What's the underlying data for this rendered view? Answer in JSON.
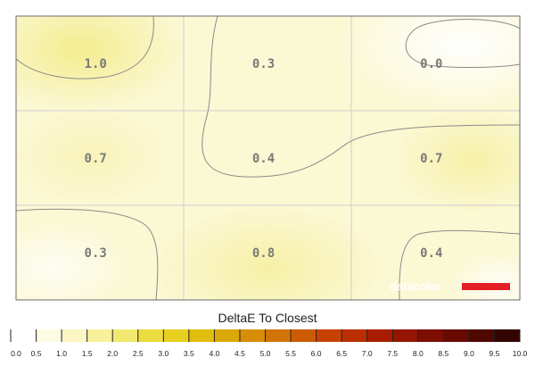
{
  "chart_data": {
    "type": "heatmap",
    "title": "",
    "rows": 3,
    "cols": 3,
    "values": [
      [
        1.0,
        0.3,
        0.0
      ],
      [
        0.7,
        0.4,
        0.7
      ],
      [
        0.3,
        0.8,
        0.4
      ]
    ],
    "value_labels": [
      [
        "1.0",
        "0.3",
        "0.0"
      ],
      [
        "0.7",
        "0.4",
        "0.7"
      ],
      [
        "0.3",
        "0.8",
        "0.4"
      ]
    ],
    "contour_lines": true,
    "grid": true,
    "colorbar": {
      "title": "DeltaE To Closest",
      "min": 0.0,
      "max": 10.0,
      "step": 0.5,
      "tick_labels": [
        "0.0",
        "0.5",
        "1.0",
        "1.5",
        "2.0",
        "2.5",
        "3.0",
        "3.5",
        "4.0",
        "4.5",
        "5.0",
        "5.5",
        "6.0",
        "6.5",
        "7.0",
        "7.5",
        "8.0",
        "8.5",
        "9.0",
        "9.5",
        "10.0"
      ],
      "colors": [
        "#ffffff",
        "#fdfbe4",
        "#fbf6c3",
        "#f8f09b",
        "#f3e86f",
        "#ecdc40",
        "#e7d020",
        "#e1bd0e",
        "#dca708",
        "#d78e06",
        "#d27405",
        "#cd5b04",
        "#c64203",
        "#ba2e02",
        "#a91e02",
        "#951402",
        "#7e0e02",
        "#680a02",
        "#4f0702",
        "#330402"
      ]
    }
  },
  "watermark": {
    "text": "datacolor",
    "accent": "#e31e24"
  }
}
